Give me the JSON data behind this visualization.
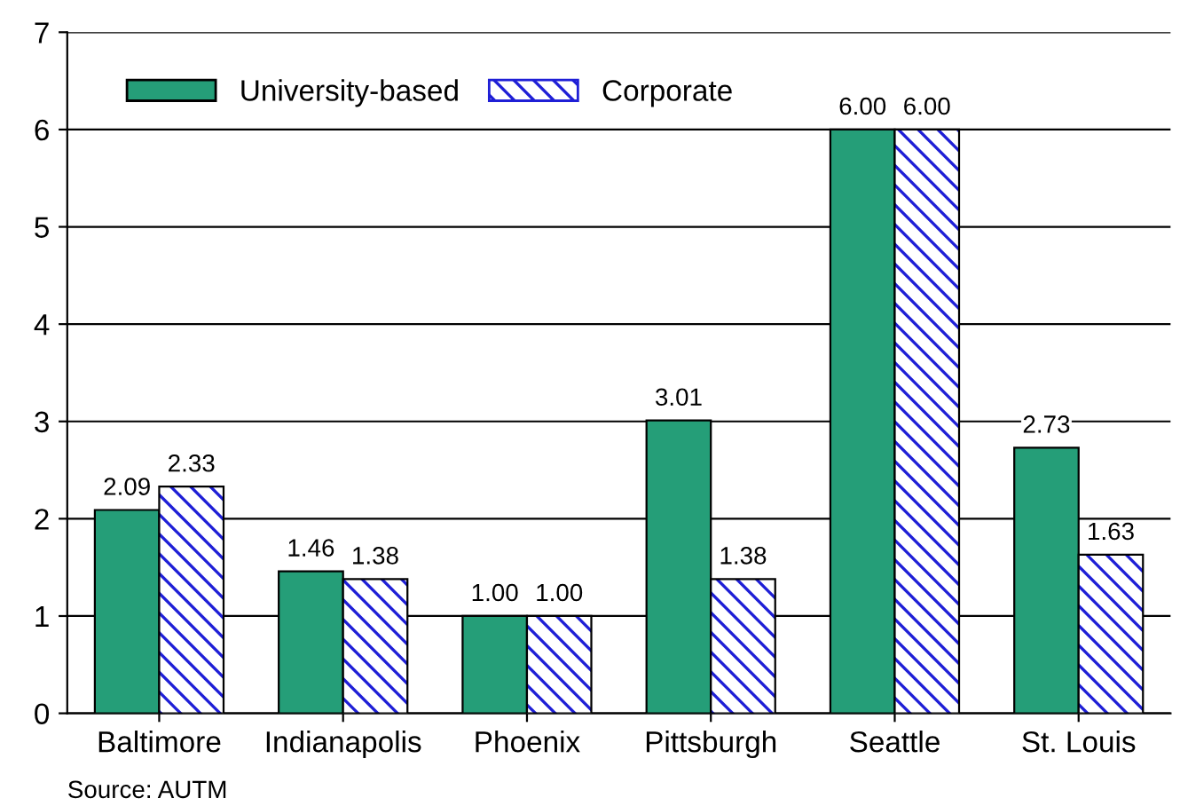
{
  "chart_data": {
    "type": "bar",
    "categories": [
      "Baltimore",
      "Indianapolis",
      "Phoenix",
      "Pittsburgh",
      "Seattle",
      "St. Louis"
    ],
    "series": [
      {
        "name": "University-based",
        "color": "#259e78",
        "values": [
          2.09,
          1.46,
          1.0,
          3.01,
          6.0,
          2.73
        ],
        "value_labels": [
          "2.09",
          "1.46",
          "1.00",
          "3.01",
          "6.00",
          "2.73"
        ]
      },
      {
        "name": "Corporate",
        "color": "#1f1fd6",
        "values": [
          2.33,
          1.38,
          1.0,
          1.38,
          6.0,
          1.63
        ],
        "value_labels": [
          "2.33",
          "1.38",
          "1.00",
          "1.38",
          "6.00",
          "1.63"
        ]
      }
    ],
    "ylim": [
      0,
      7
    ],
    "yticks": [
      0,
      1,
      2,
      3,
      4,
      5,
      6,
      7
    ],
    "grid": "y",
    "legend": "top left",
    "annotations": [
      "Source: AUTM"
    ]
  }
}
